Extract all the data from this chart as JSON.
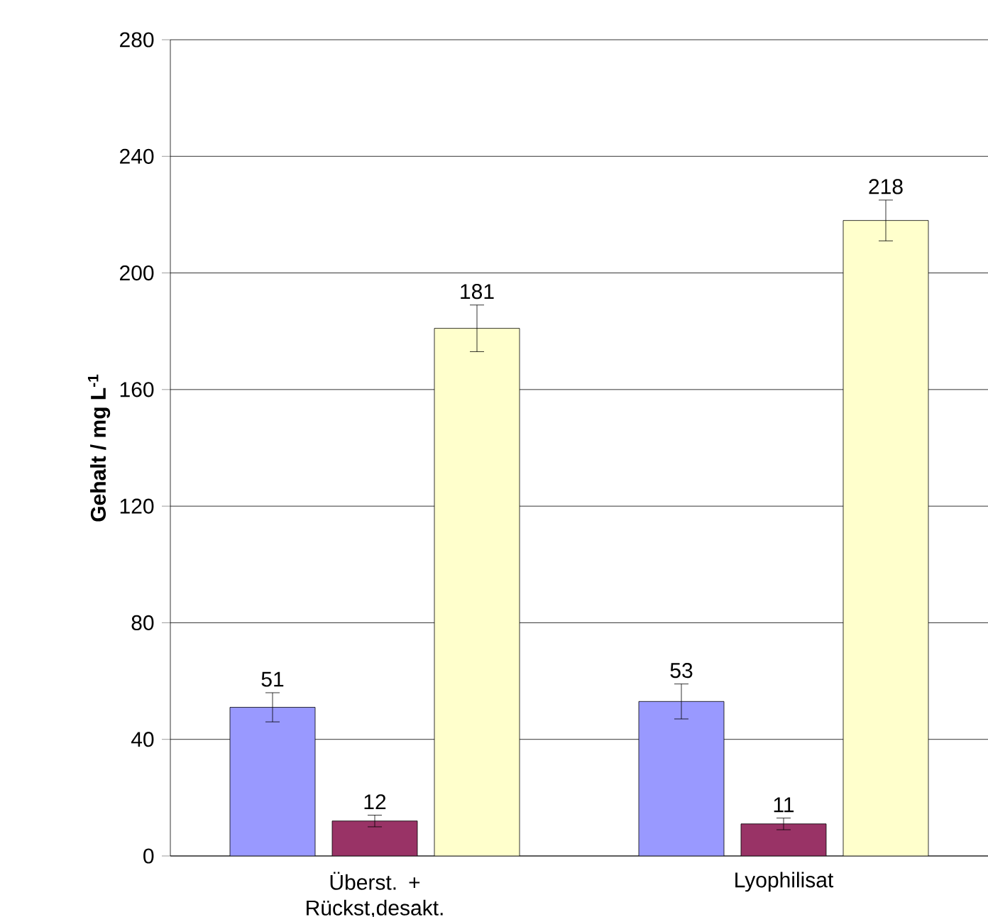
{
  "chart_data": {
    "type": "bar",
    "ylabel": "Gehalt / mg L$^{-1}$",
    "categories": [
      "Überst. + Rückst,desakt.",
      "Lyophilisat"
    ],
    "series": [
      {
        "color": "#9999ff",
        "values": [
          51,
          53
        ],
        "errors": [
          5,
          6
        ]
      },
      {
        "color": "#993366",
        "values": [
          12,
          11
        ],
        "errors": [
          2,
          2
        ]
      },
      {
        "color": "#ffffcc",
        "values": [
          181,
          218
        ],
        "errors": [
          8,
          7
        ]
      }
    ],
    "ylim": [
      0,
      280
    ],
    "yticks": [
      0,
      40,
      80,
      120,
      160,
      200,
      240,
      280
    ],
    "grid": "y",
    "data_labels": true
  }
}
